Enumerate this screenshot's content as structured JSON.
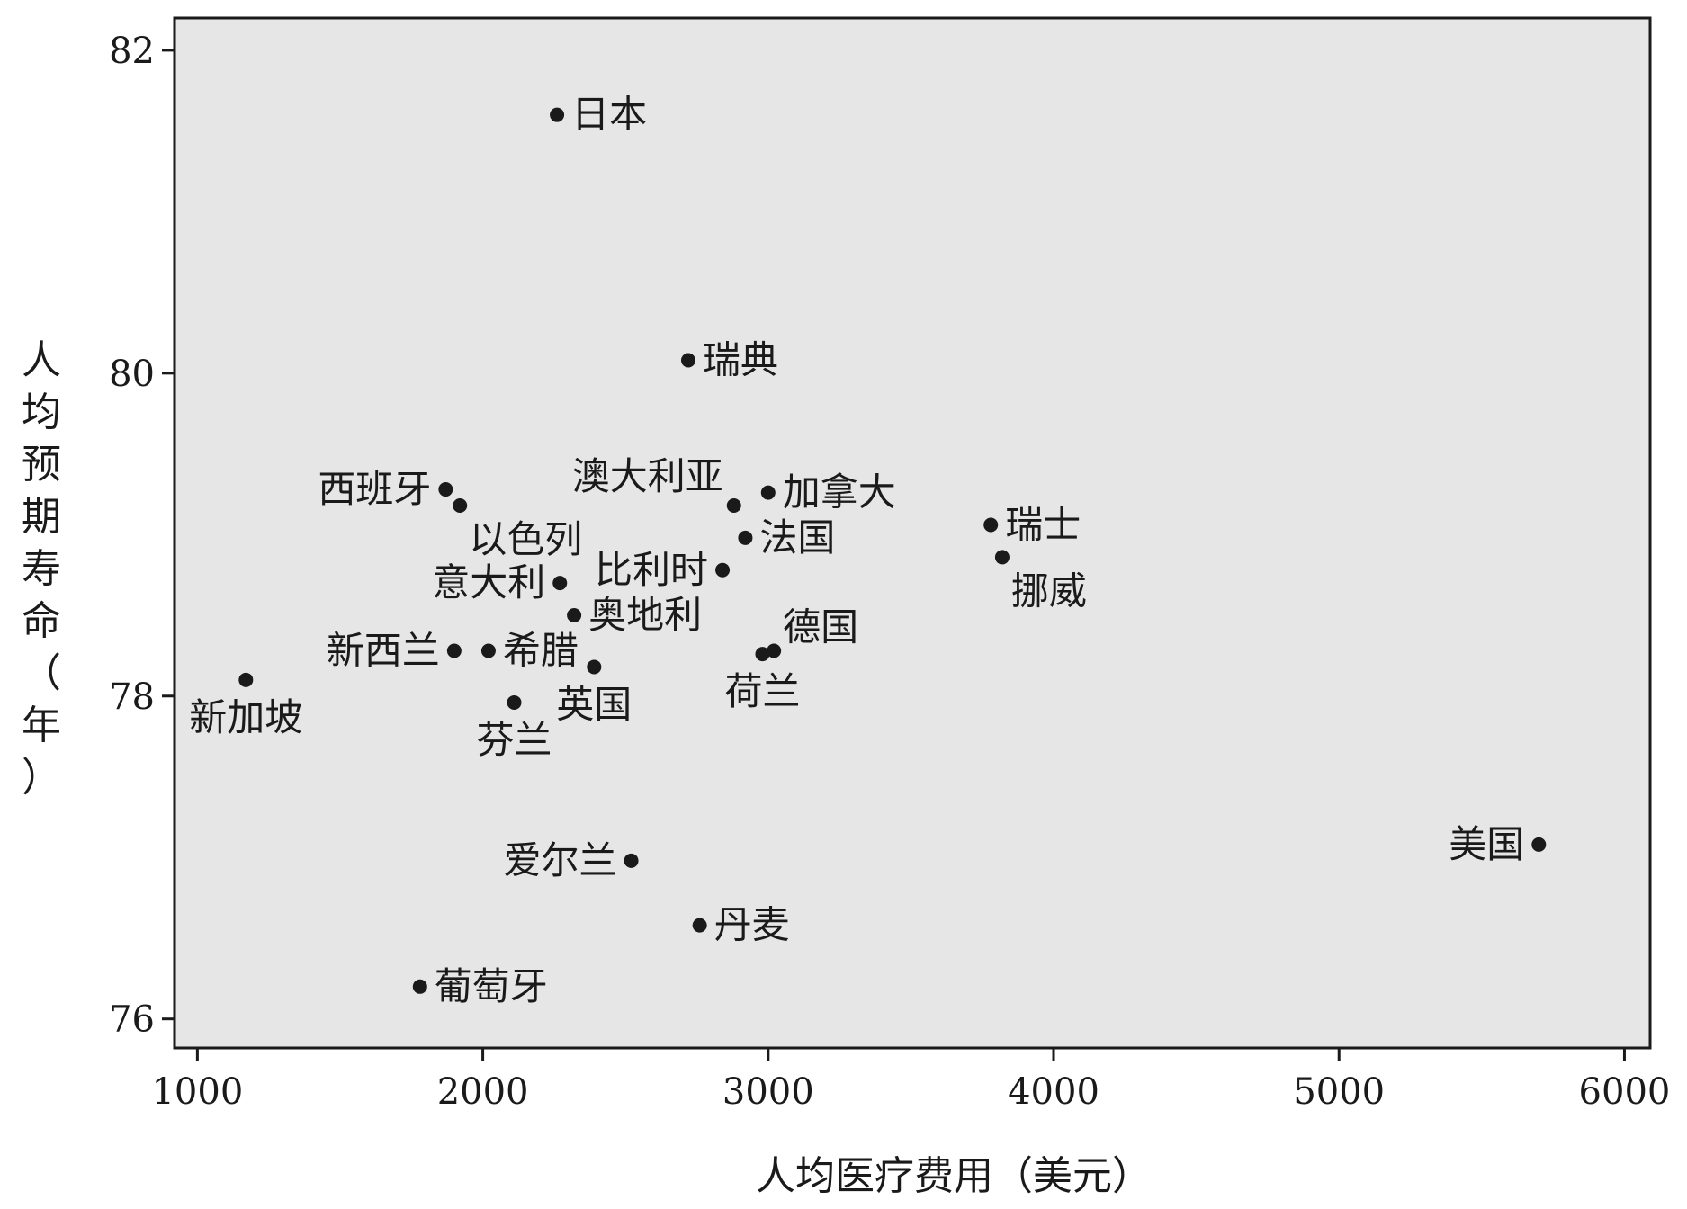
{
  "chart_data": {
    "type": "scatter",
    "xlabel": "人均医疗费用（美元）",
    "ylabel": "人均预期寿命（年）",
    "xlim": [
      920,
      6090
    ],
    "ylim": [
      75.82,
      82.2
    ],
    "xticks": [
      1000,
      2000,
      3000,
      4000,
      5000,
      6000
    ],
    "yticks": [
      76,
      78,
      80,
      82
    ],
    "grid": false,
    "background": "#e6e6e6",
    "point_color": "#1a1a1a",
    "points": [
      {
        "label": "日本",
        "x": 2260,
        "y": 81.6,
        "pos": "right"
      },
      {
        "label": "瑞典",
        "x": 2720,
        "y": 80.08,
        "pos": "right"
      },
      {
        "label": "西班牙",
        "x": 1870,
        "y": 79.28,
        "pos": "left"
      },
      {
        "label": "以色列",
        "x": 1920,
        "y": 79.18,
        "pos": "below-right"
      },
      {
        "label": "澳大利亚",
        "x": 2880,
        "y": 79.18,
        "pos": "above-left"
      },
      {
        "label": "加拿大",
        "x": 3000,
        "y": 79.26,
        "pos": "right"
      },
      {
        "label": "法国",
        "x": 2920,
        "y": 78.98,
        "pos": "right"
      },
      {
        "label": "瑞士",
        "x": 3780,
        "y": 79.06,
        "pos": "right"
      },
      {
        "label": "挪威",
        "x": 3820,
        "y": 78.86,
        "pos": "below-right"
      },
      {
        "label": "比利时",
        "x": 2840,
        "y": 78.78,
        "pos": "left"
      },
      {
        "label": "意大利",
        "x": 2270,
        "y": 78.7,
        "pos": "left"
      },
      {
        "label": "奥地利",
        "x": 2320,
        "y": 78.5,
        "pos": "right"
      },
      {
        "label": "德国",
        "x": 3020,
        "y": 78.28,
        "pos": "above-right"
      },
      {
        "label": "荷兰",
        "x": 2980,
        "y": 78.26,
        "pos": "below"
      },
      {
        "label": "新西兰",
        "x": 1900,
        "y": 78.28,
        "pos": "left"
      },
      {
        "label": "希腊",
        "x": 2020,
        "y": 78.28,
        "pos": "right"
      },
      {
        "label": "英国",
        "x": 2390,
        "y": 78.18,
        "pos": "below"
      },
      {
        "label": "新加坡",
        "x": 1170,
        "y": 78.1,
        "pos": "below"
      },
      {
        "label": "芬兰",
        "x": 2110,
        "y": 77.96,
        "pos": "below"
      },
      {
        "label": "美国",
        "x": 5700,
        "y": 77.08,
        "pos": "left"
      },
      {
        "label": "爱尔兰",
        "x": 2520,
        "y": 76.98,
        "pos": "left"
      },
      {
        "label": "丹麦",
        "x": 2760,
        "y": 76.58,
        "pos": "right"
      },
      {
        "label": "葡萄牙",
        "x": 1780,
        "y": 76.2,
        "pos": "right"
      }
    ]
  }
}
